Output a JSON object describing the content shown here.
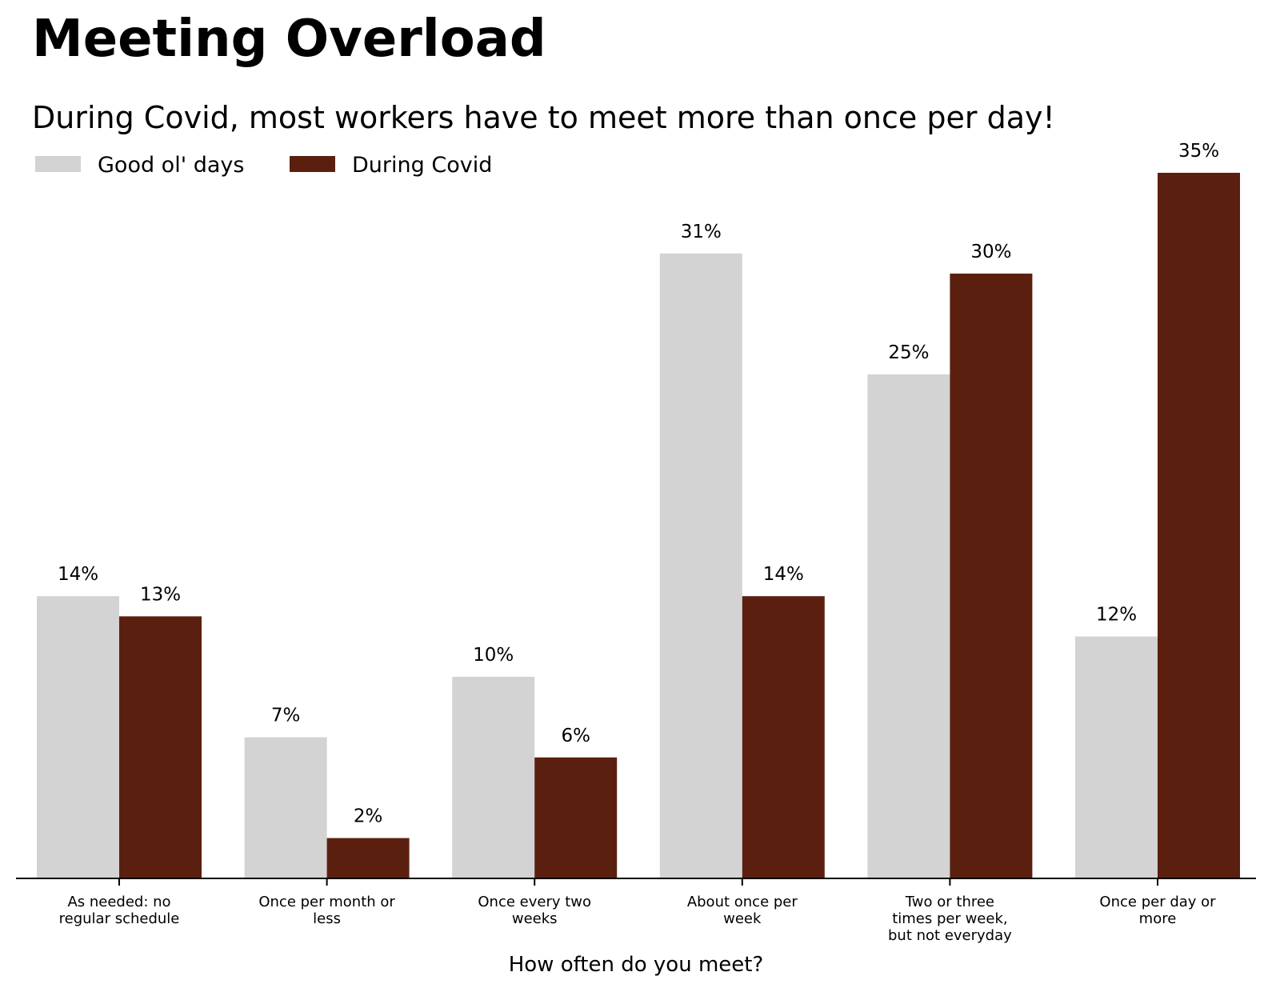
{
  "chart_data": {
    "type": "bar",
    "title": "Meeting Overload",
    "subtitle": "During Covid, most workers have to meet more than once per day!",
    "xlabel": "How often do you meet?",
    "ylabel": "",
    "categories": [
      [
        "As needed: no",
        "regular schedule"
      ],
      [
        "Once per month or",
        "less"
      ],
      [
        "Once every two",
        "weeks"
      ],
      [
        "About once per",
        "week"
      ],
      [
        "Two or three",
        "times per week,",
        "but not everyday"
      ],
      [
        "Once per day or",
        "more"
      ]
    ],
    "series": [
      {
        "name": "Good ol' days",
        "color": "#d3d3d3",
        "values": [
          14,
          7,
          10,
          31,
          25,
          12
        ],
        "labels": [
          "14%",
          "7%",
          "10%",
          "31%",
          "25%",
          "12%"
        ]
      },
      {
        "name": "During Covid",
        "color": "#5b1f10",
        "values": [
          13,
          2,
          6,
          14,
          30,
          35
        ],
        "labels": [
          "13%",
          "2%",
          "6%",
          "14%",
          "30%",
          "35%"
        ]
      }
    ],
    "ylim": [
      0,
      37
    ],
    "grid": false,
    "legend_position": "top-left",
    "y_axis_visible": false
  }
}
